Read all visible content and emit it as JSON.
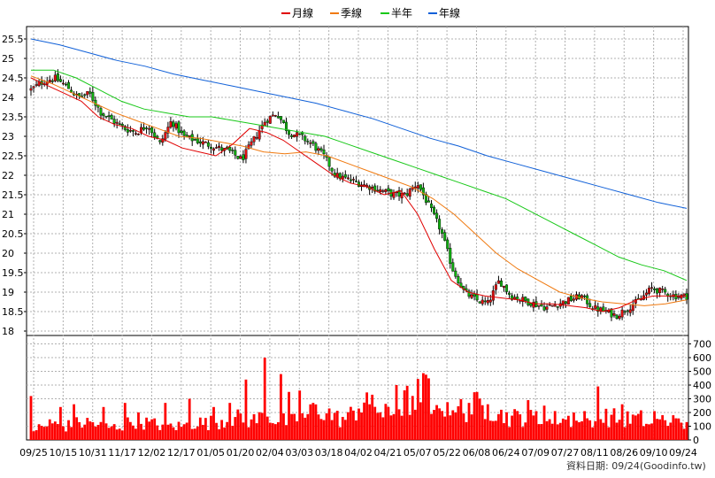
{
  "chart_data": {
    "type": "candlestick",
    "legend": [
      {
        "name": "月線",
        "color": "#e00000"
      },
      {
        "name": "季線",
        "color": "#f07a10"
      },
      {
        "name": "半年",
        "color": "#18c818"
      },
      {
        "name": "年線",
        "color": "#1060d8"
      }
    ],
    "price_axis": {
      "ticks": [
        "18",
        "18.5",
        "19",
        "19.5",
        "20",
        "20.5",
        "21",
        "21.5",
        "22",
        "22.5",
        "23",
        "23.5",
        "24",
        "24.5",
        "25",
        "25.5"
      ],
      "ylim": [
        18,
        25.5
      ]
    },
    "volume_axis": {
      "ticks": [
        "0",
        "100",
        "200",
        "300",
        "400",
        "500",
        "600",
        "700"
      ],
      "ylim": [
        0,
        800
      ]
    },
    "x_tick_labels": [
      "09/25",
      "10/15",
      "10/31",
      "11/17",
      "12/02",
      "12/17",
      "01/05",
      "01/20",
      "02/04",
      "03/03",
      "03/18",
      "04/02",
      "04/21",
      "05/07",
      "05/22",
      "06/08",
      "06/24",
      "07/09",
      "07/27",
      "08/11",
      "08/26",
      "09/10",
      "09/24"
    ],
    "close_anchors": [
      24.2,
      24.4,
      24.5,
      24.3,
      24.0,
      24.1,
      23.6,
      23.4,
      23.2,
      23.1,
      23.3,
      22.8,
      23.4,
      23.0,
      22.9,
      22.8,
      22.7,
      22.6,
      22.4,
      22.9,
      23.4,
      23.6,
      23.1,
      23.0,
      22.8,
      22.5,
      22.0,
      21.9,
      21.8,
      21.7,
      21.6,
      21.5,
      21.5,
      21.8,
      21.2,
      20.6,
      19.6,
      19.0,
      18.8,
      18.7,
      19.3,
      18.9,
      18.8,
      18.7,
      18.6,
      18.7,
      18.8,
      18.9,
      18.6,
      18.5,
      18.4,
      18.6,
      18.8,
      19.1,
      19.0,
      18.9,
      18.9
    ],
    "ma_month": [
      24.5,
      24.3,
      24.1,
      23.9,
      23.5,
      23.3,
      23.2,
      23.0,
      22.9,
      22.7,
      22.6,
      22.5,
      22.8,
      23.2,
      23.1,
      22.9,
      22.6,
      22.3,
      22.0,
      21.8,
      21.7,
      21.5,
      21.6,
      21.0,
      20.1,
      19.3,
      19.0,
      18.9,
      18.85,
      18.8,
      18.7,
      18.7,
      18.65,
      18.6,
      18.5,
      18.6,
      18.8,
      18.9,
      18.9,
      18.9
    ],
    "ma_quarter": [
      24.55,
      24.35,
      24.1,
      23.85,
      23.6,
      23.4,
      23.2,
      23.0,
      22.95,
      22.85,
      22.75,
      22.6,
      22.55,
      22.6,
      22.5,
      22.3,
      22.1,
      21.9,
      21.7,
      21.4,
      21.0,
      20.5,
      20.0,
      19.6,
      19.3,
      19.0,
      18.85,
      18.75,
      18.7,
      18.65,
      18.7,
      18.8
    ],
    "ma_half": [
      24.7,
      24.7,
      24.5,
      24.2,
      23.9,
      23.7,
      23.6,
      23.5,
      23.5,
      23.4,
      23.3,
      23.2,
      23.1,
      23.0,
      22.8,
      22.6,
      22.4,
      22.2,
      22.0,
      21.8,
      21.6,
      21.4,
      21.1,
      20.8,
      20.5,
      20.2,
      19.9,
      19.7,
      19.55,
      19.3
    ],
    "ma_year": [
      25.5,
      25.35,
      25.15,
      24.95,
      24.8,
      24.6,
      24.45,
      24.3,
      24.15,
      24.0,
      23.85,
      23.65,
      23.45,
      23.2,
      22.95,
      22.75,
      22.5,
      22.3,
      22.1,
      21.9,
      21.7,
      21.5,
      21.3,
      21.15
    ],
    "volume_anchors": [
      80,
      90,
      110,
      100,
      120,
      130,
      100,
      90,
      110,
      150,
      120,
      110,
      100,
      100,
      130,
      120,
      140,
      150,
      160,
      140,
      180,
      150,
      130,
      150,
      200,
      220,
      160,
      150,
      250,
      330,
      180,
      200,
      280,
      320,
      390,
      280,
      260,
      220,
      250,
      240,
      200,
      160,
      170,
      150,
      130,
      160,
      150,
      120,
      110,
      170,
      160,
      150,
      160,
      100,
      150,
      120,
      100
    ],
    "volume_spikes": [
      [
        9,
        150
      ],
      [
        23,
        240
      ],
      [
        36,
        320
      ],
      [
        57,
        150
      ],
      [
        68,
        240
      ],
      [
        85,
        260
      ],
      [
        117,
        240
      ],
      [
        140,
        270
      ],
      [
        186,
        270
      ],
      [
        215,
        300
      ],
      [
        243,
        240
      ],
      [
        261,
        270
      ],
      [
        278,
        440
      ],
      [
        300,
        600
      ],
      [
        318,
        480
      ],
      [
        328,
        350
      ],
      [
        338,
        360
      ],
      [
        354,
        270
      ],
      [
        408,
        200
      ],
      [
        418,
        260
      ],
      [
        448,
        400
      ],
      [
        468,
        220
      ],
      [
        487,
        190
      ],
      [
        497,
        230
      ],
      [
        516,
        200
      ],
      [
        530,
        270
      ],
      [
        550,
        260
      ],
      [
        566,
        220
      ],
      [
        598,
        290
      ],
      [
        606,
        210
      ],
      [
        615,
        250
      ],
      [
        648,
        200
      ],
      [
        662,
        210
      ],
      [
        676,
        390
      ],
      [
        702,
        260
      ],
      [
        720,
        190
      ],
      [
        740,
        210
      ],
      [
        760,
        180
      ]
    ],
    "source_label": "資料日期: 09/24",
    "source_site": "(Goodinfo.tw)"
  }
}
